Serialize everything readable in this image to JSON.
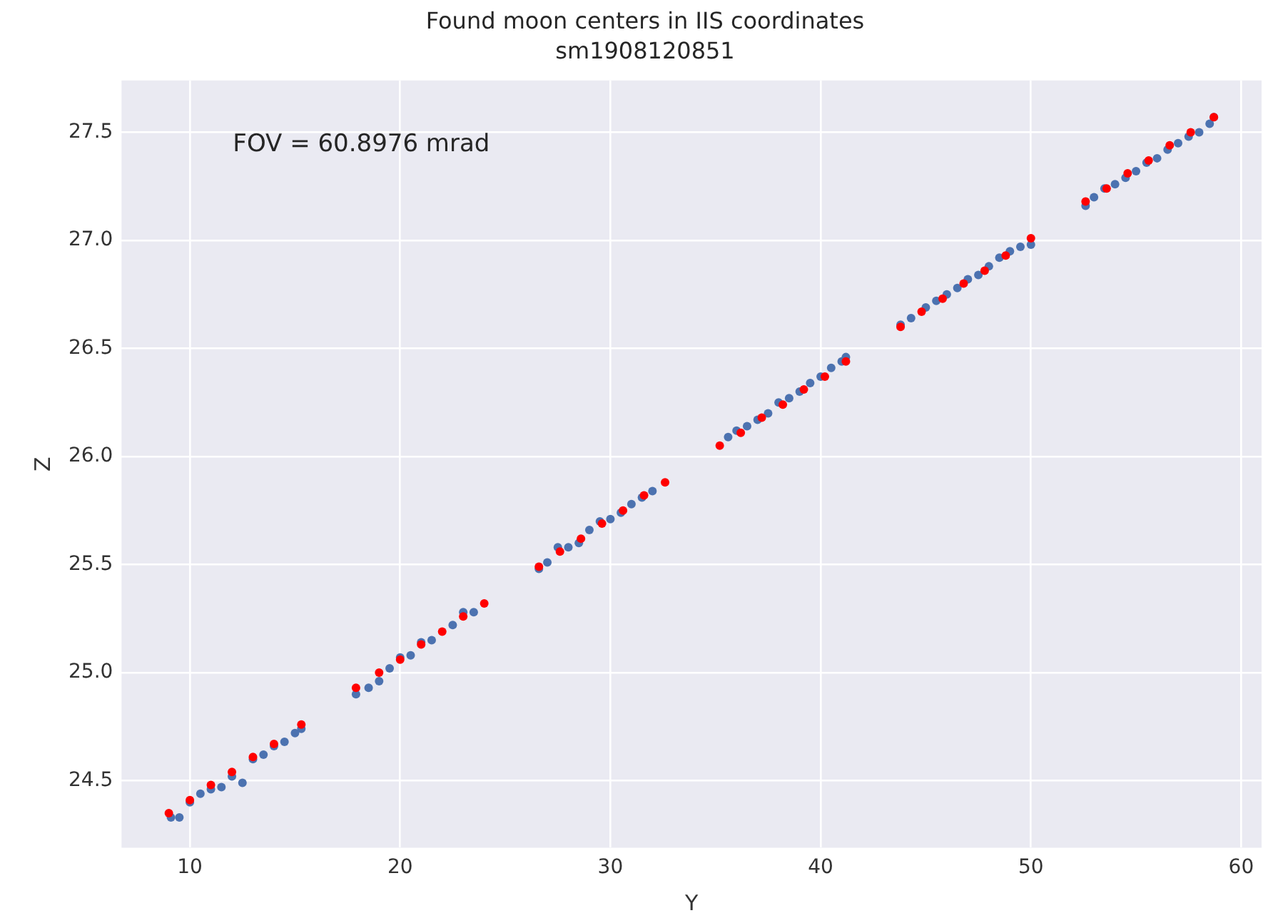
{
  "chart_data": {
    "type": "scatter",
    "title": "Found moon centers in IIS coordinates",
    "subtitle": "sm1908120851",
    "xlabel": "Y",
    "ylabel": "Z",
    "annotations": [
      "FOV = 60.8976 mrad"
    ],
    "xlim": [
      6.75,
      60.97
    ],
    "xticks": [
      10,
      20,
      30,
      40,
      50,
      60
    ],
    "ylim": [
      24.19,
      27.74
    ],
    "yticks": [
      24.5,
      {
        "value": 25,
        "label": "25.0"
      },
      25.5,
      {
        "value": 26,
        "label": "26.0"
      },
      26.5,
      {
        "value": 27,
        "label": "27.0"
      },
      27.5
    ],
    "grid": true,
    "legend": false,
    "marker": "circle",
    "series": [
      {
        "color": "#4c72b0",
        "x": [
          9.1,
          9.5,
          10,
          10.5,
          11,
          11.5,
          12,
          12.5,
          13,
          13.5,
          14,
          14.5,
          15,
          15.3,
          17.9,
          18.5,
          19,
          19.5,
          20,
          20.5,
          21,
          21.5,
          22,
          22.5,
          23,
          23.5,
          24,
          26.6,
          27,
          27.5,
          28,
          28.5,
          29,
          29.5,
          30,
          30.5,
          31,
          31.5,
          32,
          32.6,
          35.2,
          35.6,
          36,
          36.5,
          37,
          37.5,
          38,
          38.5,
          39,
          39.5,
          40,
          40.5,
          41,
          41.2,
          43.8,
          44.3,
          45,
          45.5,
          46,
          46.5,
          47,
          47.5,
          48,
          48.5,
          49,
          49.5,
          50,
          52.6,
          53,
          53.5,
          54,
          54.5,
          55,
          55.5,
          56,
          56.5,
          57,
          57.5,
          58,
          58.5,
          58.7
        ],
        "values": [
          24.33,
          24.33,
          24.4,
          24.44,
          24.46,
          24.47,
          24.52,
          24.49,
          24.6,
          24.62,
          24.66,
          24.68,
          24.72,
          24.74,
          24.9,
          24.93,
          24.96,
          25.02,
          25.07,
          25.08,
          25.14,
          25.15,
          null,
          25.22,
          25.28,
          25.28,
          null,
          25.48,
          25.51,
          25.58,
          25.58,
          25.6,
          25.66,
          25.7,
          25.71,
          25.74,
          25.78,
          25.81,
          25.84,
          null,
          null,
          26.09,
          26.12,
          26.14,
          26.17,
          26.2,
          26.25,
          26.27,
          26.3,
          26.34,
          26.37,
          26.41,
          26.44,
          26.46,
          26.61,
          26.64,
          26.69,
          26.72,
          26.75,
          26.78,
          26.82,
          26.84,
          26.88,
          26.92,
          26.95,
          26.97,
          26.98,
          27.16,
          27.2,
          27.24,
          27.26,
          27.29,
          27.32,
          27.36,
          27.38,
          27.42,
          27.45,
          27.48,
          27.5,
          27.54,
          27.57
        ]
      },
      {
        "color": "#ff0000",
        "x": [
          9,
          10,
          11,
          12,
          13,
          14,
          15.3,
          17.9,
          19,
          20,
          21,
          22,
          23,
          24,
          26.6,
          27.6,
          28.6,
          29.6,
          30.6,
          31.6,
          32.6,
          35.2,
          36.2,
          37.2,
          38.2,
          39.2,
          40.2,
          41.2,
          43.8,
          44.8,
          45.8,
          46.8,
          47.8,
          48.8,
          50,
          52.6,
          53.6,
          54.6,
          55.6,
          56.6,
          57.6,
          58.7
        ],
        "values": [
          24.35,
          24.41,
          24.48,
          24.54,
          24.61,
          24.67,
          24.76,
          24.93,
          25.0,
          25.06,
          25.13,
          25.19,
          25.26,
          25.32,
          25.49,
          25.56,
          25.62,
          25.69,
          25.75,
          25.82,
          25.88,
          26.05,
          26.11,
          26.18,
          26.24,
          26.31,
          26.37,
          26.44,
          26.6,
          26.67,
          26.73,
          26.8,
          26.86,
          26.93,
          27.01,
          27.18,
          27.24,
          27.31,
          27.37,
          27.44,
          27.5,
          27.57
        ]
      }
    ]
  }
}
